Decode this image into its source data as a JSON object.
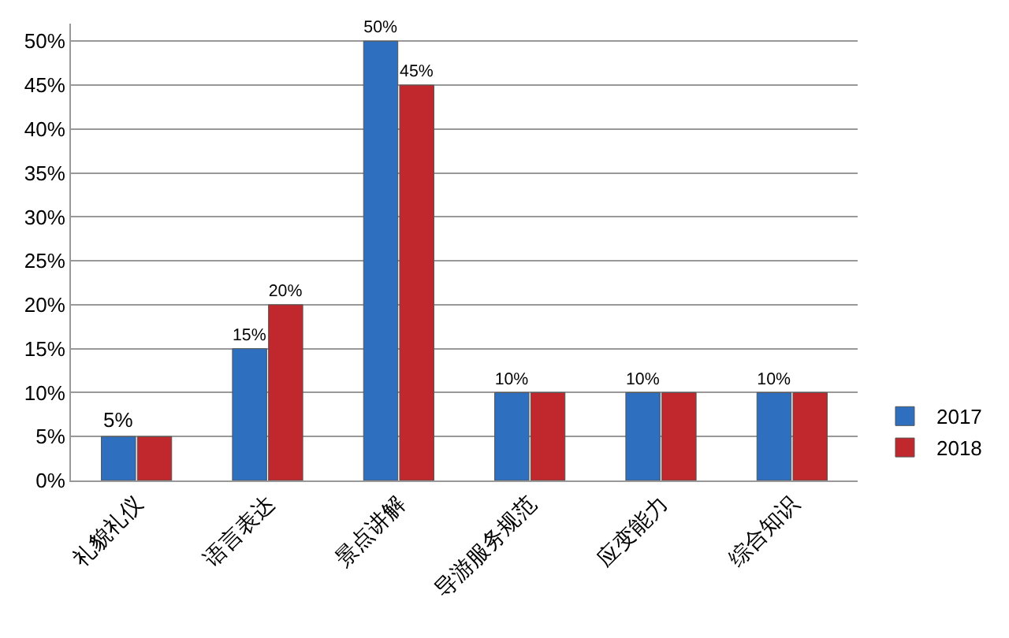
{
  "chart_data": {
    "type": "bar",
    "categories": [
      "礼貌礼仪",
      "语言表达",
      "景点讲解",
      "导游服务规范",
      "应变能力",
      "综合知识"
    ],
    "series": [
      {
        "name": "2017",
        "color": "#2e6fc0",
        "values": [
          5,
          15,
          50,
          10,
          10,
          10
        ],
        "value_labels": [
          "5%",
          "15%",
          "50%",
          "10%",
          "10%",
          "10%"
        ]
      },
      {
        "name": "2018",
        "color": "#c0282d",
        "values": [
          5,
          20,
          45,
          10,
          10,
          10
        ],
        "value_labels": [
          null,
          "20%",
          "45%",
          null,
          null,
          null
        ]
      }
    ],
    "ylim": [
      0,
      52
    ],
    "yticks": [
      {
        "value": 0,
        "label": "0%"
      },
      {
        "value": 5,
        "label": "5%"
      },
      {
        "value": 10,
        "label": "10%"
      },
      {
        "value": 15,
        "label": "15%"
      },
      {
        "value": 20,
        "label": "20%"
      },
      {
        "value": 25,
        "label": "25%"
      },
      {
        "value": 30,
        "label": "30%"
      },
      {
        "value": 35,
        "label": "35%"
      },
      {
        "value": 40,
        "label": "40%"
      },
      {
        "value": 45,
        "label": "45%"
      },
      {
        "value": 50,
        "label": "50%"
      }
    ],
    "grid": "y",
    "legend": "bottom right"
  }
}
